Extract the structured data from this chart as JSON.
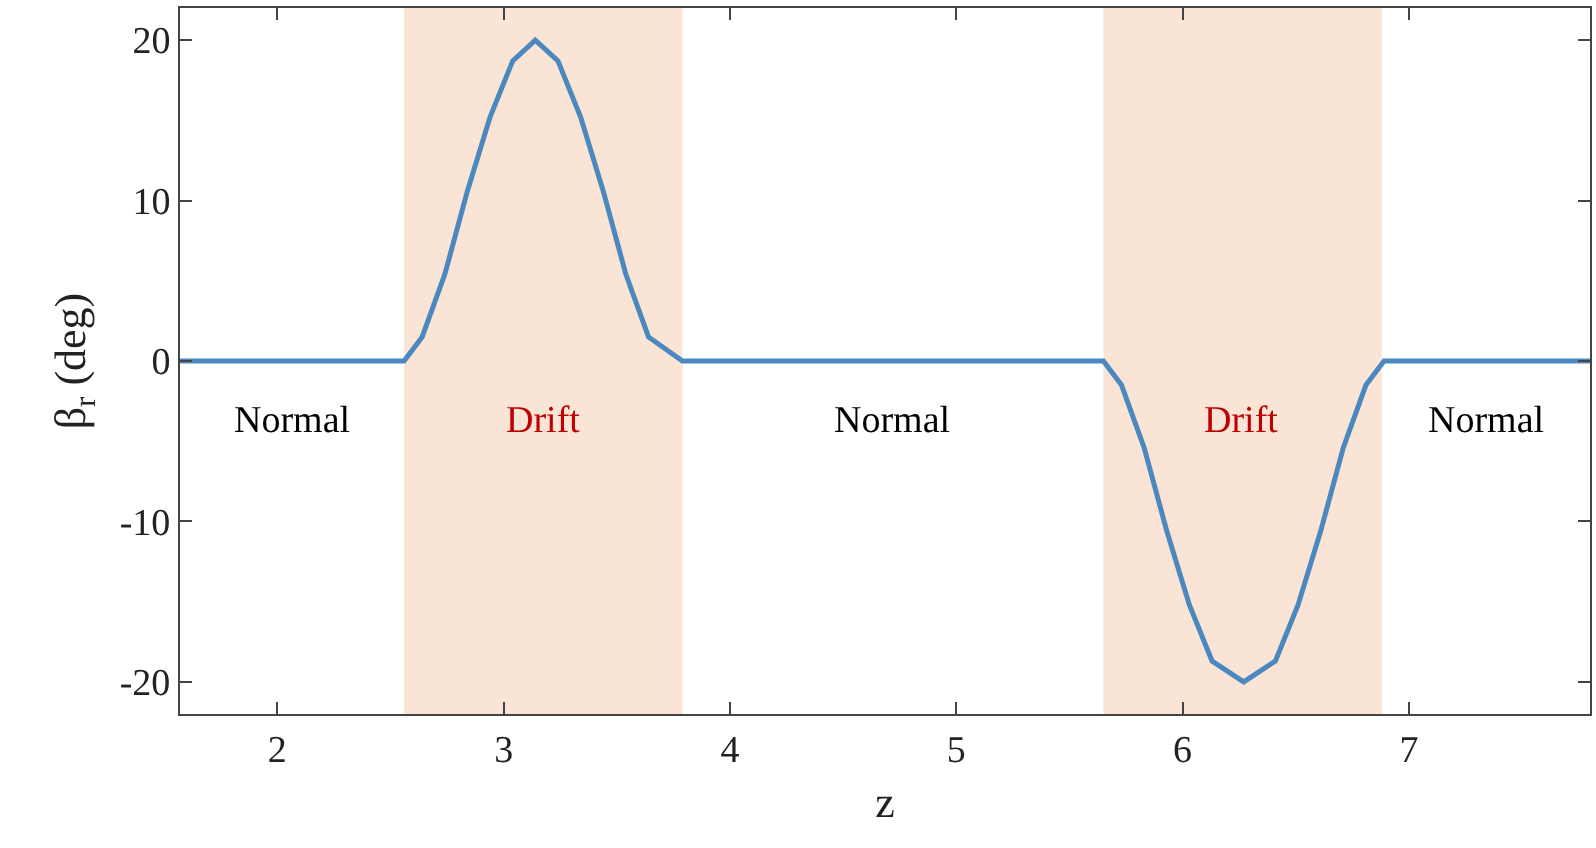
{
  "chart_data": {
    "type": "line",
    "xlabel": "z",
    "ylabel": "β$_{r}$ (deg)",
    "x": [
      1.57,
      2.56,
      2.64,
      2.74,
      2.84,
      2.94,
      3.04,
      3.14,
      3.24,
      3.34,
      3.44,
      3.54,
      3.64,
      3.79,
      5.65,
      5.73,
      5.83,
      5.93,
      6.03,
      6.13,
      6.27,
      6.41,
      6.51,
      6.61,
      6.71,
      6.81,
      6.89,
      7.8
    ],
    "series": [
      {
        "color": "#4a88bf",
        "values": [
          0,
          0,
          1.5,
          5.4,
          10.6,
          15.2,
          18.7,
          20,
          18.7,
          15.2,
          10.6,
          5.4,
          1.5,
          0,
          0,
          -1.5,
          -5.4,
          -10.6,
          -15.2,
          -18.7,
          -20,
          -18.7,
          -15.2,
          -10.6,
          -5.4,
          -1.5,
          0,
          0
        ]
      }
    ],
    "xlim": [
      1.57,
      7.8
    ],
    "ylim": [
      -22,
      22
    ],
    "xticks": [
      2,
      3,
      4,
      5,
      6,
      7
    ],
    "yticks": [
      -20,
      -10,
      0,
      10,
      20
    ],
    "bands": [
      {
        "axis": "x",
        "from": 2.56,
        "to": 3.79,
        "label": "Drift",
        "color": "#fae4d6"
      },
      {
        "axis": "x",
        "from": 5.65,
        "to": 6.88,
        "label": "Drift",
        "color": "#fae4d6"
      }
    ],
    "annotations": [
      "Normal",
      "Normal",
      "Normal"
    ],
    "grid": false,
    "marker": "none",
    "line_style": "solid"
  }
}
